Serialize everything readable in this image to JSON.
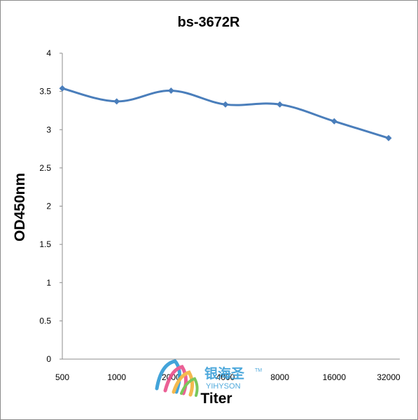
{
  "chart_data": {
    "type": "line",
    "title": "bs-3672R",
    "xlabel": "Titer",
    "ylabel": "OD450nm",
    "categories": [
      "500",
      "1000",
      "2000",
      "4000",
      "8000",
      "16000",
      "32000"
    ],
    "series": [
      {
        "values": [
          3.54,
          3.37,
          3.51,
          3.33,
          3.33,
          3.11,
          2.89
        ]
      }
    ],
    "ylim": [
      0,
      4
    ],
    "yticks": [
      "0",
      "0.5",
      "1",
      "1.5",
      "2",
      "2.5",
      "3",
      "3.5",
      "4"
    ],
    "grid": false,
    "legend": "none",
    "line_color": "#4a7ebb"
  },
  "watermark": {
    "text_cn": "银海圣",
    "text_en": "YIHYSON",
    "tm": "TM",
    "colors": [
      "#2f9bd6",
      "#e94f8a",
      "#f3b23c",
      "#6cc24a"
    ]
  }
}
